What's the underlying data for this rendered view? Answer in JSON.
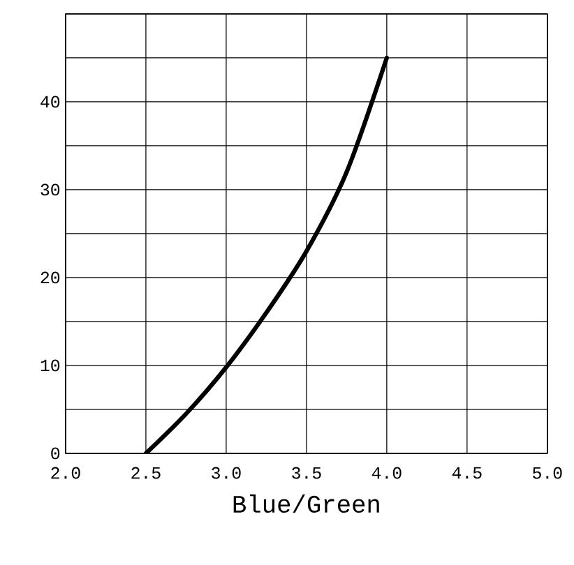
{
  "chart_data": {
    "type": "line",
    "xlabel": "Blue/Green",
    "x": [
      2.5,
      2.75,
      3.0,
      3.25,
      3.5,
      3.75,
      4.0
    ],
    "series": [
      {
        "color": "#000000",
        "values": [
          0,
          4.5,
          9.8,
          16,
          23,
          32,
          45
        ]
      }
    ],
    "xlim": [
      2.0,
      5.0
    ],
    "ylim": [
      0,
      50
    ],
    "xticks": [
      {
        "value": 2.0,
        "label": "2.0"
      },
      {
        "value": 2.5,
        "label": "2.5"
      },
      {
        "value": 3.0,
        "label": "3.0"
      },
      {
        "value": 3.5,
        "label": "3.5"
      },
      {
        "value": 4.0,
        "label": "4.0"
      },
      {
        "value": 4.5,
        "label": "4.5"
      },
      {
        "value": 5.0,
        "label": "5.0"
      }
    ],
    "yticks": [
      0,
      {
        "value": 5,
        "label": null
      },
      10,
      {
        "value": 15,
        "label": null
      },
      20,
      {
        "value": 25,
        "label": null
      },
      30,
      {
        "value": 35,
        "label": null
      },
      40,
      {
        "value": 45,
        "label": null
      },
      {
        "value": 50,
        "label": null
      }
    ],
    "grid": true,
    "marker": "none",
    "line_style": "solid"
  }
}
